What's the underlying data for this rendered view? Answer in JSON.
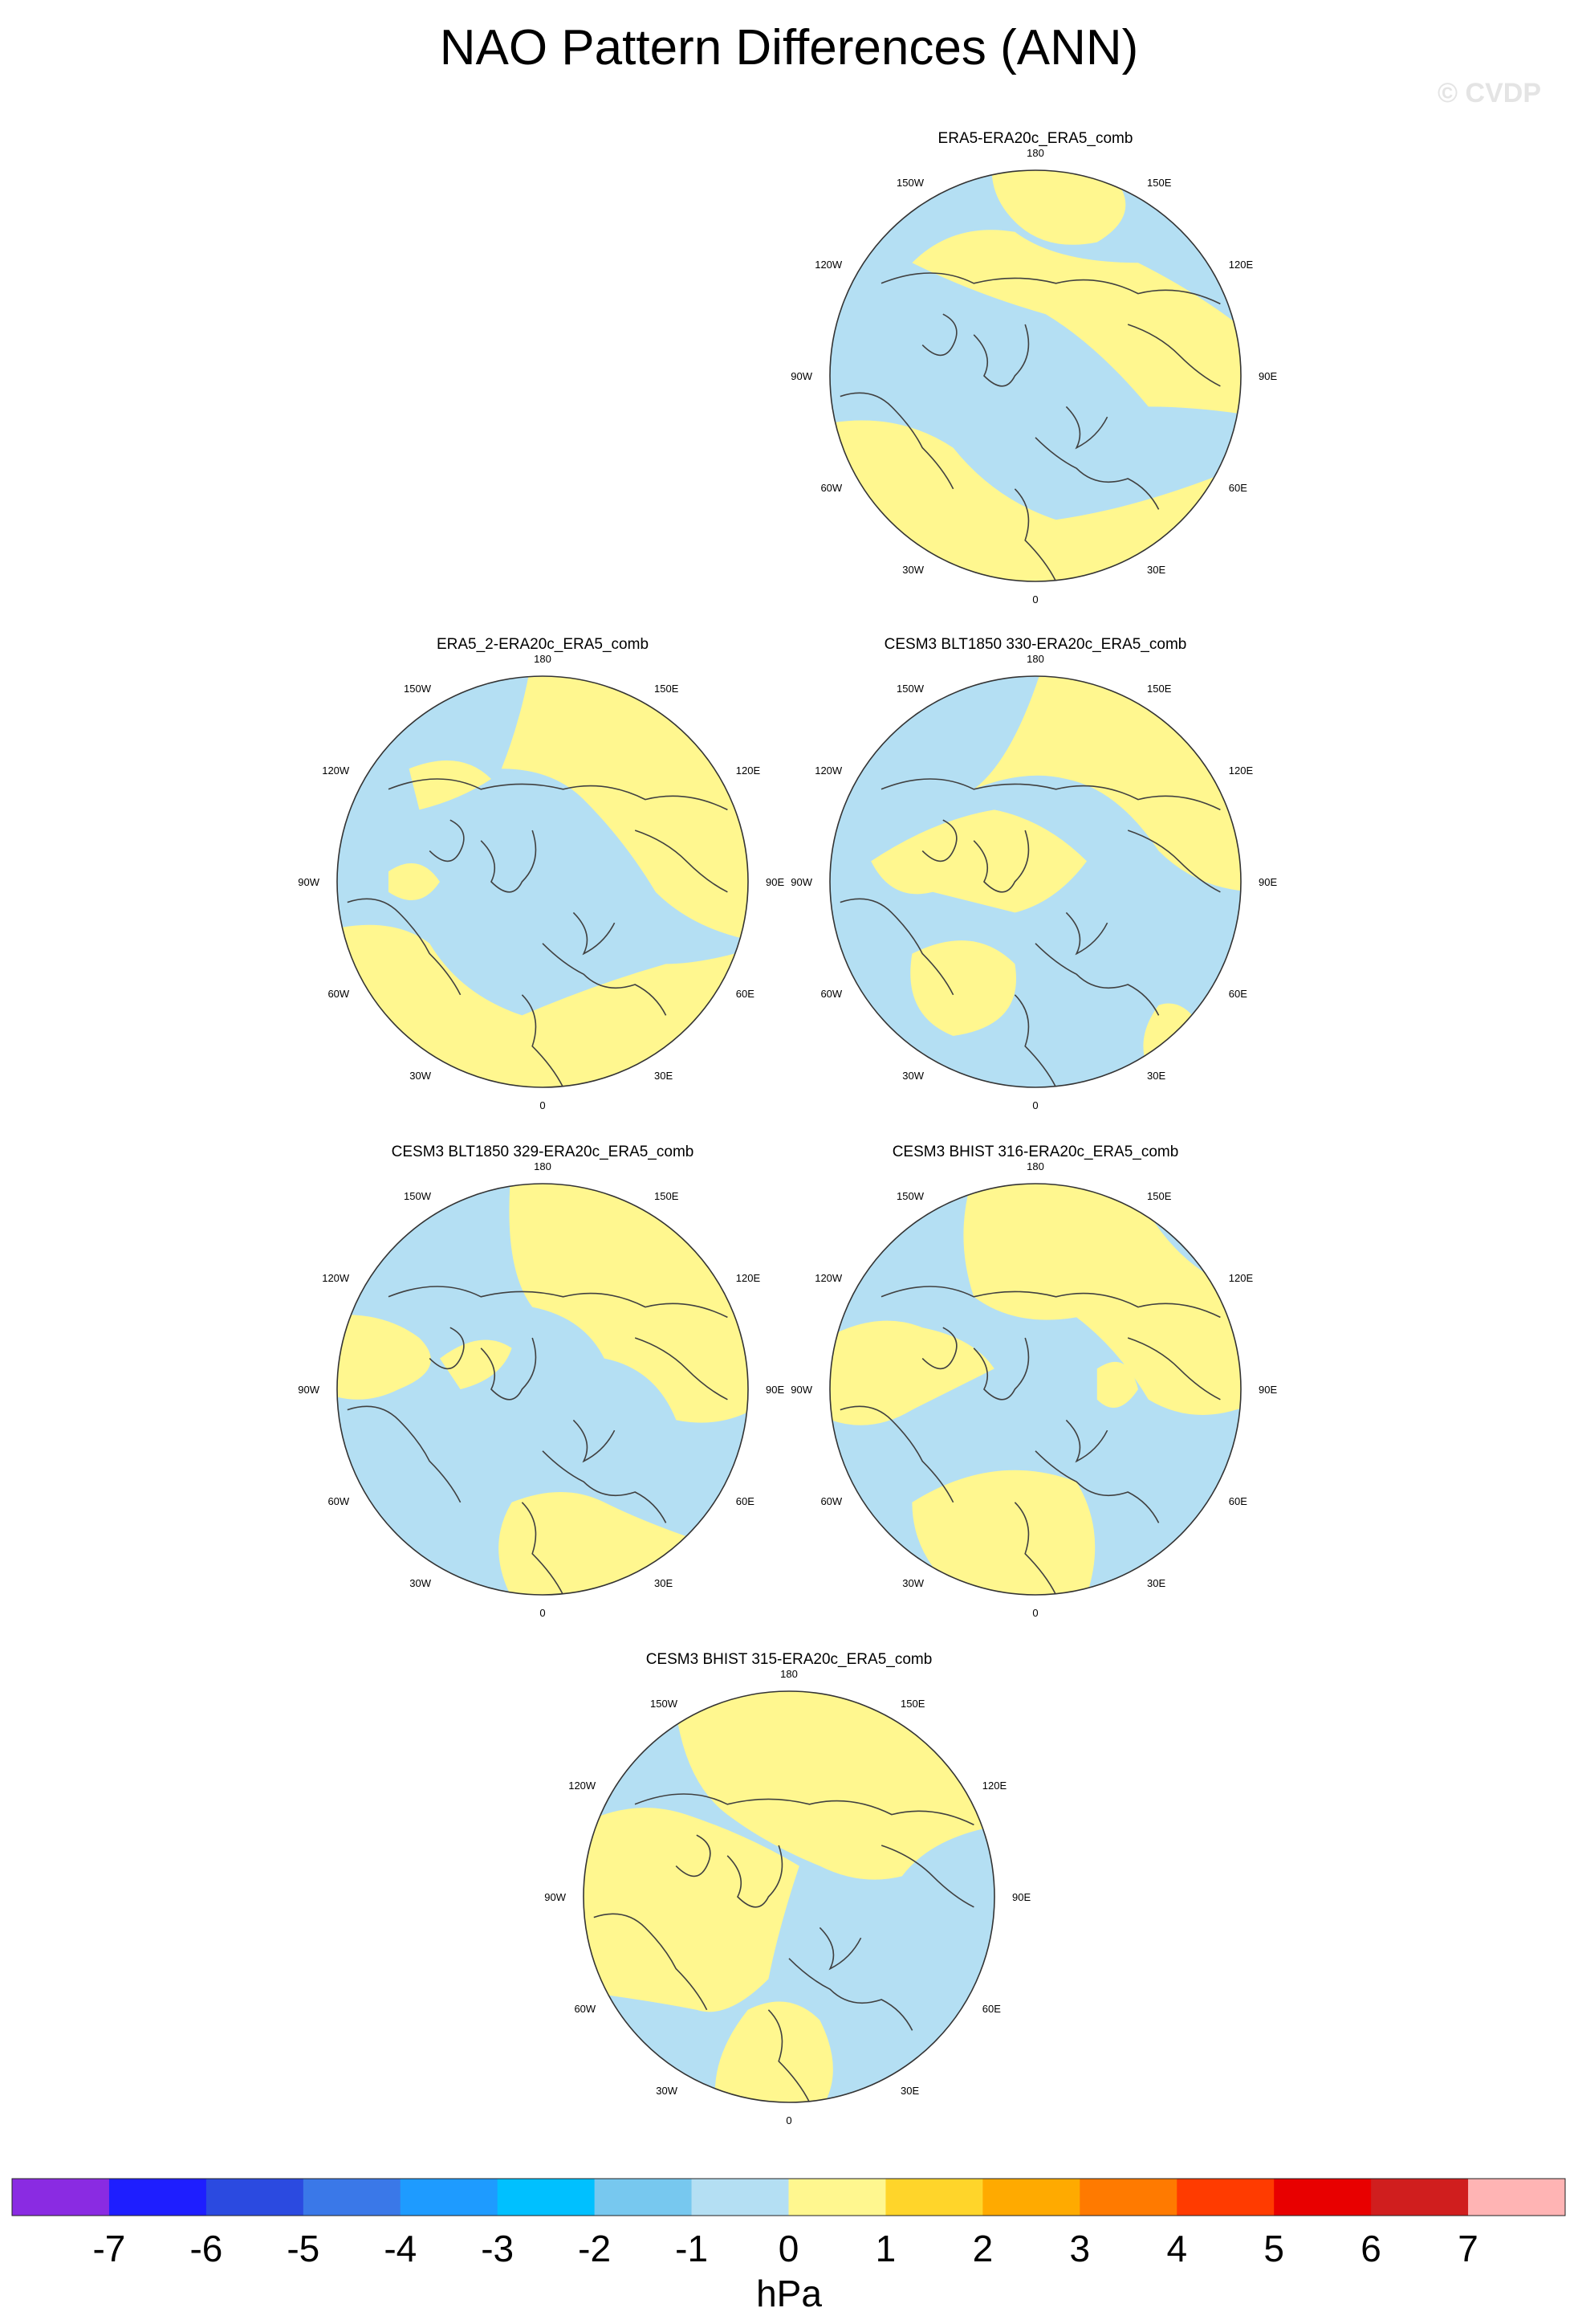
{
  "figure": {
    "title": "NAO Pattern Differences (ANN)",
    "watermark": "© CVDP"
  },
  "panels": [
    {
      "title": "ERA5-ERA20c_ERA5_comb"
    },
    {
      "title": "ERA5_2-ERA20c_ERA5_comb"
    },
    {
      "title": "CESM3 BLT1850 330-ERA20c_ERA5_comb"
    },
    {
      "title": "CESM3 BLT1850 329-ERA20c_ERA5_comb"
    },
    {
      "title": "CESM3 BHIST 316-ERA20c_ERA5_comb"
    },
    {
      "title": "CESM3 BHIST 315-ERA20c_ERA5_comb"
    }
  ],
  "longitude_labels": {
    "top": "180",
    "bottom": "0",
    "left": "90W",
    "right": "90E",
    "upper_left_1": "150W",
    "upper_left_2": "120W",
    "lower_left_1": "60W",
    "lower_left_2": "30W",
    "upper_right_1": "150E",
    "upper_right_2": "120E",
    "lower_right_1": "60E",
    "lower_right_2": "30E"
  },
  "colorbar": {
    "unit": "hPa",
    "ticks": [
      "-7",
      "-6",
      "-5",
      "-4",
      "-3",
      "-2",
      "-1",
      "0",
      "1",
      "2",
      "3",
      "4",
      "5",
      "6",
      "7"
    ],
    "colors": [
      "#8a2be2",
      "#1e1eff",
      "#2b4ae0",
      "#3a78e8",
      "#1e9bff",
      "#00c0ff",
      "#77c8ef",
      "#b4dff3",
      "#fff78f",
      "#ffd52a",
      "#ffaa00",
      "#ff7a00",
      "#ff3b00",
      "#e80000",
      "#d01e1e",
      "#ffb4b4"
    ]
  },
  "map_colors": {
    "negative": "#b4dff3",
    "positive": "#fff78f",
    "coast": "#404040"
  }
}
